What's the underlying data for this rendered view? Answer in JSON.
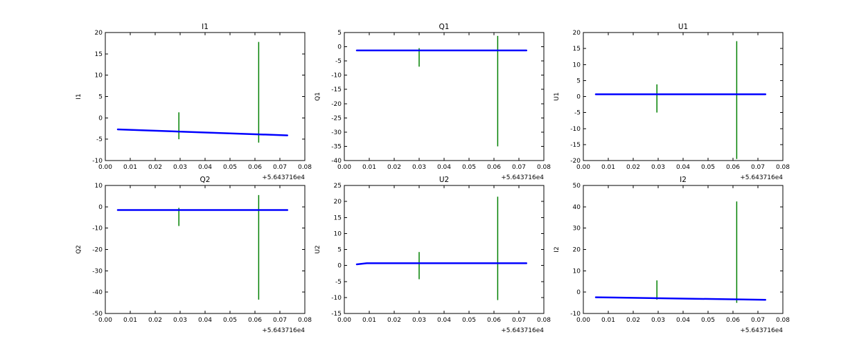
{
  "figure": {
    "background": "#ffffff",
    "axes_color": "#000000",
    "line_color": "#0000ff",
    "spike_color": "#008000",
    "grid": false,
    "legend": false,
    "rows": 2,
    "cols": 3,
    "xlim": [
      0,
      0.08
    ],
    "xticks": [
      0,
      0.01,
      0.02,
      0.03,
      0.04,
      0.05,
      0.06,
      0.07,
      0.08
    ],
    "xtick_labels": [
      "0.00",
      "0.01",
      "0.02",
      "0.03",
      "0.04",
      "0.05",
      "0.06",
      "0.07",
      "0.08"
    ],
    "x_offset_label": "+5.643716e4"
  },
  "chart_data": [
    {
      "type": "line",
      "title": "I1",
      "ylabel": "I1",
      "ylim": [
        -10,
        20
      ],
      "yticks": [
        -10,
        -5,
        0,
        5,
        10,
        15,
        20
      ],
      "line": {
        "x": [
          0.005,
          0.073
        ],
        "y": [
          -2.7,
          -4.1
        ]
      },
      "spikes": [
        {
          "x": 0.0295,
          "y0": -5.0,
          "y1": 1.3
        },
        {
          "x": 0.0615,
          "y0": -5.8,
          "y1": 17.8
        }
      ]
    },
    {
      "type": "line",
      "title": "Q1",
      "ylabel": "Q1",
      "ylim": [
        -40,
        5
      ],
      "yticks": [
        -40,
        -35,
        -30,
        -25,
        -20,
        -15,
        -10,
        -5,
        0,
        5
      ],
      "line": {
        "x": [
          0.005,
          0.073
        ],
        "y": [
          -1.3,
          -1.3
        ]
      },
      "spikes": [
        {
          "x": 0.03,
          "y0": -7.0,
          "y1": -0.5
        },
        {
          "x": 0.0615,
          "y0": -35.0,
          "y1": 3.8
        }
      ]
    },
    {
      "type": "line",
      "title": "U1",
      "ylabel": "U1",
      "ylim": [
        -20,
        20
      ],
      "yticks": [
        -20,
        -15,
        -10,
        -5,
        0,
        5,
        10,
        15,
        20
      ],
      "line": {
        "x": [
          0.005,
          0.073
        ],
        "y": [
          0.7,
          0.7
        ]
      },
      "spikes": [
        {
          "x": 0.0295,
          "y0": -5.0,
          "y1": 3.8
        },
        {
          "x": 0.0615,
          "y0": -19.5,
          "y1": 17.3
        }
      ]
    },
    {
      "type": "line",
      "title": "Q2",
      "ylabel": "Q2",
      "ylim": [
        -50,
        10
      ],
      "yticks": [
        -50,
        -40,
        -30,
        -20,
        -10,
        0,
        10
      ],
      "line": {
        "x": [
          0.005,
          0.073
        ],
        "y": [
          -1.5,
          -1.5
        ]
      },
      "spikes": [
        {
          "x": 0.0295,
          "y0": -9.0,
          "y1": -0.5
        },
        {
          "x": 0.0615,
          "y0": -43.5,
          "y1": 5.5
        }
      ]
    },
    {
      "type": "line",
      "title": "U2",
      "ylabel": "U2",
      "ylim": [
        -15,
        25
      ],
      "yticks": [
        -15,
        -10,
        -5,
        0,
        5,
        10,
        15,
        20,
        25
      ],
      "line": {
        "x": [
          0.005,
          0.009,
          0.073
        ],
        "y": [
          0.35,
          0.7,
          0.7
        ]
      },
      "spikes": [
        {
          "x": 0.03,
          "y0": -4.3,
          "y1": 4.2
        },
        {
          "x": 0.0615,
          "y0": -10.8,
          "y1": 21.5
        }
      ]
    },
    {
      "type": "line",
      "title": "I2",
      "ylabel": "I2",
      "ylim": [
        -10,
        50
      ],
      "yticks": [
        -10,
        0,
        10,
        20,
        30,
        40,
        50
      ],
      "line": {
        "x": [
          0.005,
          0.073
        ],
        "y": [
          -2.4,
          -3.6
        ]
      },
      "spikes": [
        {
          "x": 0.0295,
          "y0": -3.5,
          "y1": 5.5
        },
        {
          "x": 0.0615,
          "y0": -5.0,
          "y1": 42.5
        }
      ]
    }
  ]
}
